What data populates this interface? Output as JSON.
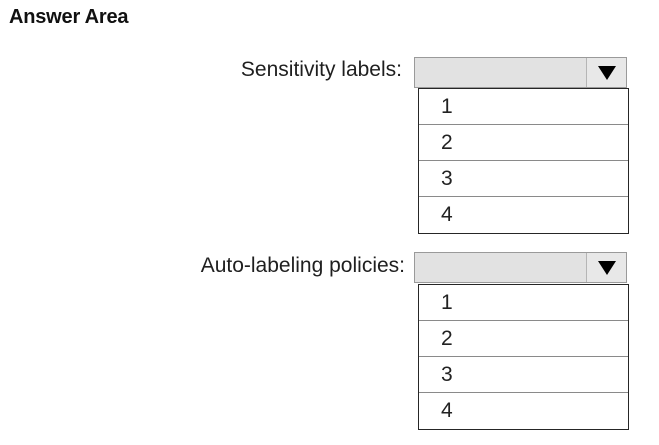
{
  "title": "Answer Area",
  "sections": [
    {
      "label": "Sensitivity labels:",
      "selected": "",
      "options": [
        "1",
        "2",
        "3",
        "4"
      ]
    },
    {
      "label": "Auto-labeling policies:",
      "selected": "",
      "options": [
        "1",
        "2",
        "3",
        "4"
      ]
    }
  ],
  "icons": {
    "dropdown": "triangle-down-icon"
  },
  "colors": {
    "dropdown_bg": "#e2e2e2",
    "list_border": "#262626"
  }
}
